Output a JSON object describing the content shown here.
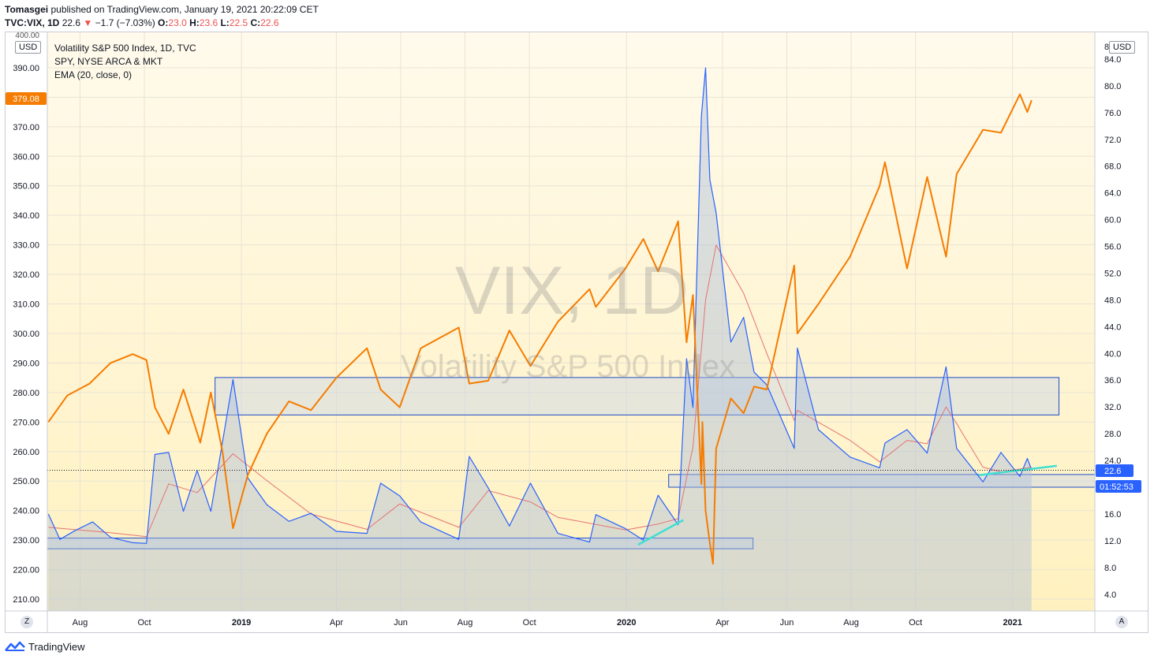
{
  "header": {
    "author": "Tomasgei",
    "published": "published on TradingView.com, January 19, 2021 20:22:09 CET",
    "symbol": "TVC:VIX, 1D",
    "price": "22.6",
    "change": "−1.7 (−7.03%)",
    "o_label": "O:",
    "o_val": "23.0",
    "h_label": "H:",
    "h_val": "23.6",
    "l_label": "L:",
    "l_val": "22.5",
    "c_label": "C:",
    "c_val": "22.6"
  },
  "legend": {
    "line1": "Volatility S&P 500 Index, 1D, TVC",
    "line2": "SPY, NYSE ARCA & MKT",
    "line3": "EMA (20, close, 0)"
  },
  "watermark": {
    "big": "VIX, 1D",
    "small": "Volatility S&P 500 Index"
  },
  "axis": {
    "left_unit": "USD",
    "right_unit": "USD",
    "spy_last": "379.08",
    "vix_last": "22.6",
    "countdown": "01:52:53",
    "left_top_partial": "400.00",
    "right_top_partial": "8",
    "scale_btn_left": "Z",
    "scale_btn_right": "A"
  },
  "footer": {
    "brand": "TradingView"
  },
  "colors": {
    "spy": "#f57c00",
    "vix": "#2962ff",
    "vix_fill": "#a7b9dc",
    "ema": "#e57373",
    "trend": "#40e0d0",
    "box": "#1e4ec8",
    "bg_top": "#fff9e6",
    "bg_bottom": "#fff3c4"
  },
  "chart_data": {
    "type": "line",
    "x_ticks": [
      "Aug",
      "Oct",
      "2019",
      "Apr",
      "Jun",
      "Aug",
      "Oct",
      "2020",
      "Apr",
      "Jun",
      "Aug",
      "Oct",
      "2021"
    ],
    "left_axis": {
      "label": "SPY",
      "ticks": [
        210,
        220,
        230,
        240,
        250,
        260,
        270,
        280,
        290,
        300,
        310,
        320,
        330,
        340,
        350,
        360,
        370,
        380,
        390
      ],
      "ylim": [
        206,
        402
      ]
    },
    "right_axis": {
      "label": "VIX",
      "ticks": [
        4,
        8,
        12,
        16,
        20,
        24,
        28,
        32,
        36,
        40,
        44,
        48,
        52,
        56,
        60,
        64,
        68,
        72,
        76,
        80,
        84
      ],
      "ylim": [
        1.5,
        88
      ]
    },
    "x_range": [
      "2018-07-01",
      "2021-03-20"
    ],
    "series": [
      {
        "name": "SPY, NYSE ARCA & MKT",
        "axis": "left",
        "points": [
          [
            "2018-07-02",
            270
          ],
          [
            "2018-07-20",
            279
          ],
          [
            "2018-08-10",
            283
          ],
          [
            "2018-08-30",
            290
          ],
          [
            "2018-09-20",
            293
          ],
          [
            "2018-10-03",
            291
          ],
          [
            "2018-10-11",
            275
          ],
          [
            "2018-10-24",
            266
          ],
          [
            "2018-11-07",
            281
          ],
          [
            "2018-11-23",
            263
          ],
          [
            "2018-12-03",
            280
          ],
          [
            "2018-12-14",
            260
          ],
          [
            "2018-12-24",
            234
          ],
          [
            "2019-01-07",
            252
          ],
          [
            "2019-01-25",
            266
          ],
          [
            "2019-02-15",
            277
          ],
          [
            "2019-03-08",
            274
          ],
          [
            "2019-04-01",
            285
          ],
          [
            "2019-04-30",
            295
          ],
          [
            "2019-05-13",
            281
          ],
          [
            "2019-05-31",
            275
          ],
          [
            "2019-06-20",
            295
          ],
          [
            "2019-07-26",
            302
          ],
          [
            "2019-08-05",
            283
          ],
          [
            "2019-08-23",
            284
          ],
          [
            "2019-09-12",
            301
          ],
          [
            "2019-10-02",
            289
          ],
          [
            "2019-10-28",
            304
          ],
          [
            "2019-11-27",
            315
          ],
          [
            "2019-12-03",
            309
          ],
          [
            "2019-12-31",
            322
          ],
          [
            "2020-01-17",
            332
          ],
          [
            "2020-01-31",
            321
          ],
          [
            "2020-02-19",
            338
          ],
          [
            "2020-02-27",
            297
          ],
          [
            "2020-03-04",
            313
          ],
          [
            "2020-03-12",
            249
          ],
          [
            "2020-03-13",
            270
          ],
          [
            "2020-03-16",
            240
          ],
          [
            "2020-03-20",
            229
          ],
          [
            "2020-03-23",
            222
          ],
          [
            "2020-03-26",
            261
          ],
          [
            "2020-04-09",
            278
          ],
          [
            "2020-04-21",
            273
          ],
          [
            "2020-05-01",
            282
          ],
          [
            "2020-05-13",
            281
          ],
          [
            "2020-06-08",
            323
          ],
          [
            "2020-06-11",
            300
          ],
          [
            "2020-07-01",
            310
          ],
          [
            "2020-07-31",
            326
          ],
          [
            "2020-08-28",
            350
          ],
          [
            "2020-09-02",
            358
          ],
          [
            "2020-09-23",
            322
          ],
          [
            "2020-10-12",
            353
          ],
          [
            "2020-10-30",
            326
          ],
          [
            "2020-11-09",
            354
          ],
          [
            "2020-12-04",
            369
          ],
          [
            "2020-12-21",
            368
          ],
          [
            "2021-01-08",
            381
          ],
          [
            "2021-01-15",
            375
          ],
          [
            "2021-01-19",
            379
          ]
        ]
      },
      {
        "name": "Volatility S&P 500 Index",
        "axis": "right",
        "points": [
          [
            "2018-07-02",
            16
          ],
          [
            "2018-07-13",
            12.2
          ],
          [
            "2018-07-27",
            13.5
          ],
          [
            "2018-08-13",
            14.8
          ],
          [
            "2018-08-30",
            12.5
          ],
          [
            "2018-09-20",
            11.7
          ],
          [
            "2018-10-03",
            11.6
          ],
          [
            "2018-10-11",
            24.9
          ],
          [
            "2018-10-24",
            25.2
          ],
          [
            "2018-11-07",
            16.4
          ],
          [
            "2018-11-20",
            22.5
          ],
          [
            "2018-12-03",
            16.4
          ],
          [
            "2018-12-24",
            36.1
          ],
          [
            "2019-01-07",
            21.4
          ],
          [
            "2019-01-25",
            17.4
          ],
          [
            "2019-02-15",
            14.9
          ],
          [
            "2019-03-08",
            16.1
          ],
          [
            "2019-04-01",
            13.4
          ],
          [
            "2019-04-30",
            13.1
          ],
          [
            "2019-05-13",
            20.6
          ],
          [
            "2019-05-31",
            18.7
          ],
          [
            "2019-06-20",
            14.8
          ],
          [
            "2019-07-26",
            12.2
          ],
          [
            "2019-08-05",
            24.6
          ],
          [
            "2019-08-23",
            19.9
          ],
          [
            "2019-09-12",
            14.2
          ],
          [
            "2019-10-02",
            20.6
          ],
          [
            "2019-10-28",
            13.1
          ],
          [
            "2019-11-27",
            11.8
          ],
          [
            "2019-12-03",
            15.9
          ],
          [
            "2019-12-31",
            13.8
          ],
          [
            "2020-01-17",
            12.1
          ],
          [
            "2020-01-31",
            18.8
          ],
          [
            "2020-02-19",
            14.4
          ],
          [
            "2020-02-27",
            39.2
          ],
          [
            "2020-03-04",
            31.9
          ],
          [
            "2020-03-12",
            75.5
          ],
          [
            "2020-03-16",
            82.7
          ],
          [
            "2020-03-20",
            66.0
          ],
          [
            "2020-03-26",
            61.0
          ],
          [
            "2020-04-09",
            41.7
          ],
          [
            "2020-04-21",
            45.4
          ],
          [
            "2020-05-01",
            37.2
          ],
          [
            "2020-05-13",
            35.3
          ],
          [
            "2020-06-08",
            25.8
          ],
          [
            "2020-06-11",
            40.8
          ],
          [
            "2020-07-01",
            28.6
          ],
          [
            "2020-07-31",
            24.5
          ],
          [
            "2020-08-28",
            22.9
          ],
          [
            "2020-09-02",
            26.6
          ],
          [
            "2020-09-23",
            28.6
          ],
          [
            "2020-10-12",
            25.1
          ],
          [
            "2020-10-30",
            38.0
          ],
          [
            "2020-11-09",
            25.8
          ],
          [
            "2020-12-04",
            20.8
          ],
          [
            "2020-12-21",
            25.2
          ],
          [
            "2021-01-08",
            21.6
          ],
          [
            "2021-01-15",
            24.3
          ],
          [
            "2021-01-19",
            22.6
          ]
        ]
      },
      {
        "name": "EMA (20, close, 0)",
        "axis": "right",
        "points": [
          [
            "2018-07-02",
            14
          ],
          [
            "2018-08-30",
            13.2
          ],
          [
            "2018-10-03",
            12.6
          ],
          [
            "2018-10-24",
            20.5
          ],
          [
            "2018-11-20",
            19.2
          ],
          [
            "2018-12-24",
            25
          ],
          [
            "2019-01-25",
            21
          ],
          [
            "2019-03-08",
            16
          ],
          [
            "2019-04-30",
            13.7
          ],
          [
            "2019-05-31",
            17.5
          ],
          [
            "2019-07-26",
            14
          ],
          [
            "2019-08-23",
            19.5
          ],
          [
            "2019-10-02",
            17.8
          ],
          [
            "2019-10-28",
            15.5
          ],
          [
            "2019-12-31",
            13.6
          ],
          [
            "2020-01-31",
            14.5
          ],
          [
            "2020-02-19",
            15.3
          ],
          [
            "2020-03-04",
            26
          ],
          [
            "2020-03-16",
            48
          ],
          [
            "2020-03-26",
            56.2
          ],
          [
            "2020-04-21",
            49
          ],
          [
            "2020-05-13",
            40
          ],
          [
            "2020-06-08",
            30
          ],
          [
            "2020-06-11",
            31.5
          ],
          [
            "2020-07-31",
            27
          ],
          [
            "2020-08-28",
            23.8
          ],
          [
            "2020-09-23",
            27
          ],
          [
            "2020-10-12",
            26.5
          ],
          [
            "2020-10-30",
            32
          ],
          [
            "2020-11-09",
            29.5
          ],
          [
            "2020-12-04",
            23
          ],
          [
            "2020-12-21",
            22.3
          ],
          [
            "2021-01-19",
            23
          ]
        ]
      }
    ],
    "zones": [
      {
        "from": "2018-12-07",
        "to": "2021-02-14",
        "vix_low": 30.8,
        "vix_high": 36.4
      },
      {
        "from": "2018-07-01",
        "to": "2020-04-30",
        "vix_low": 10.8,
        "vix_high": 12.4
      },
      {
        "from": "2020-02-10",
        "to": "2021-03-20",
        "vix_low": 20.0,
        "vix_high": 21.9
      }
    ],
    "trendlines": [
      {
        "from": [
          "2020-01-12",
          11.4
        ],
        "to": [
          "2020-02-24",
          15.1
        ]
      },
      {
        "from": [
          "2020-11-30",
          21.8
        ],
        "to": [
          "2021-02-12",
          23.2
        ]
      }
    ]
  }
}
